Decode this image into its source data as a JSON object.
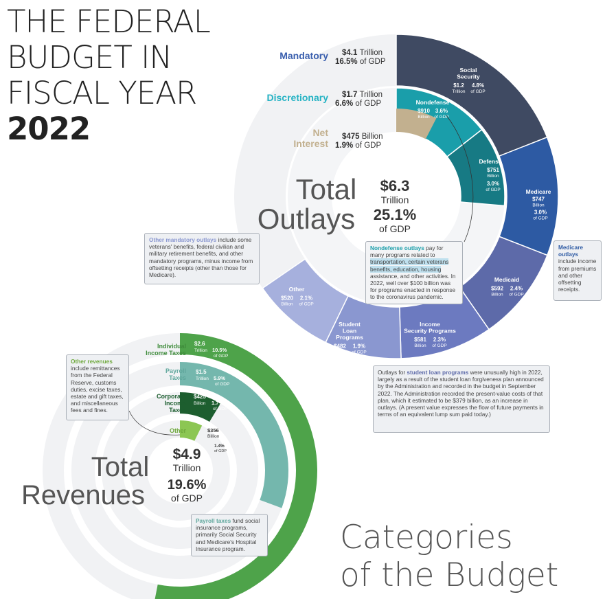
{
  "title": {
    "line1": "THE FEDERAL",
    "line2": "BUDGET IN",
    "line3": "FISCAL YEAR",
    "year": "2022"
  },
  "categories_title": {
    "line1": "Categories",
    "line2": "of the Budget"
  },
  "notes": {
    "other_mandatory": {
      "head": "Other mandatory outlays",
      "text": " include some veterans' benefits, federal civilian and military retirement benefits, and other mandatory programs, minus income from offsetting receipts (other than those for Medicare)."
    },
    "nondefense": {
      "head": "Nondefense outlays",
      "text1": " pay for many programs related to ",
      "highlight": "transportation, certain veterans benefits, education, housing",
      "text2": " assistance, and other activities. In 2022, well over $100 billion was for programs enacted in response to the coronavirus pandemic."
    },
    "medicare": {
      "head": "Medicare outlays",
      "text": " include income from premiums and other offsetting receipts."
    },
    "student_loan": {
      "prefix": "Outlays for ",
      "head": "student loan programs",
      "text": " were unusually high in 2022, largely as a result of the student loan forgiveness plan announced by the Administration and recorded in the budget in September 2022. The Administration recorded the present-value costs of that plan, which it estimated to be $379 billion, as an increase in outlays. (A present value expresses the flow of future payments in terms of an equivalent lump sum paid today.)"
    },
    "other_revenues": {
      "head": "Other revenues",
      "text": " include remittances from the Federal Reserve, customs duties, excise taxes, estate and gift taxes, and miscellaneous fees and fines."
    },
    "payroll": {
      "head": "Payroll taxes",
      "text": " fund social insurance programs, primarily Social Security and Medicare's Hospital Insurance program."
    }
  },
  "chart_data": [
    {
      "type": "pie",
      "title": "Total Outlays",
      "center": {
        "l1": "Total",
        "l2": "Outlays",
        "amount": "$6.3",
        "unit": "Trillion",
        "pct": "25.1%",
        "pctlbl": "of GDP"
      },
      "groups": [
        {
          "name": "Mandatory",
          "amount": "$4.1",
          "unit": "Trillion",
          "pct": "16.5%",
          "pctlbl": "of GDP",
          "value": 4.1,
          "color": "#3a5fae"
        },
        {
          "name": "Discretionary",
          "amount": "$1.7",
          "unit": "Trillion",
          "pct": "6.6%",
          "pctlbl": "of GDP",
          "value": 1.7,
          "color": "#26b3c4"
        },
        {
          "name": "Net",
          "name2": "Interest",
          "amount": "$475",
          "unit": "Billion",
          "pct": "1.9%",
          "pctlbl": "of GDP",
          "value": 0.475,
          "color": "#c2b08f"
        }
      ],
      "outer": [
        {
          "name": [
            "Social",
            "Security"
          ],
          "amount": "$1.2",
          "unit": "Trillion",
          "pct": "4.8%",
          "pctlbl": "of GDP",
          "value": 1.2,
          "color": "#3f4a62"
        },
        {
          "name": [
            "Medicare"
          ],
          "amount": "$747",
          "unit": "Billion",
          "pct": "3.0%",
          "pctlbl": "of GDP",
          "value": 0.747,
          "color": "#2d5aa3"
        },
        {
          "name": [
            "Medicaid"
          ],
          "amount": "$592",
          "unit": "Billion",
          "pct": "2.4%",
          "pctlbl": "of GDP",
          "value": 0.592,
          "color": "#5d6aa9"
        },
        {
          "name": [
            "Income",
            "Security Programs"
          ],
          "amount": "$581",
          "unit": "Billion",
          "pct": "2.3%",
          "pctlbl": "of GDP",
          "value": 0.581,
          "color": "#6c7ac0"
        },
        {
          "name": [
            "Student",
            "Loan",
            "Programs"
          ],
          "amount": "$482",
          "unit": "Billion",
          "pct": "1.9%",
          "pctlbl": "of GDP",
          "value": 0.482,
          "color": "#8a97d0"
        },
        {
          "name": [
            "Other"
          ],
          "amount": "$520",
          "unit": "Billion",
          "pct": "2.1%",
          "pctlbl": "of GDP",
          "value": 0.52,
          "color": "#a6b0dd"
        }
      ],
      "middle": [
        {
          "name": [
            "Nondefense"
          ],
          "amount": "$910",
          "unit": "Billion",
          "pct": "3.6%",
          "pctlbl": "of GDP",
          "value": 0.91,
          "color": "#1a9eaa"
        },
        {
          "name": [
            "Defense"
          ],
          "amount": "$751",
          "unit": "Billion",
          "pct": "3.0%",
          "pctlbl": "of GDP",
          "value": 0.751,
          "color": "#177a84"
        }
      ],
      "inner": [
        {
          "name": [
            "Net Interest"
          ],
          "amount": "$475",
          "unit": "Billion",
          "pct": "1.9%",
          "value": 0.475,
          "color": "#c2b08f"
        }
      ]
    },
    {
      "type": "pie",
      "title": "Total Revenues",
      "center": {
        "l1": "Total",
        "l2": "Revenues",
        "amount": "$4.9",
        "unit": "Trillion",
        "pct": "19.6%",
        "pctlbl": "of GDP"
      },
      "rings": [
        {
          "name": [
            "Individual",
            "Income Taxes"
          ],
          "amount": "$2.6",
          "unit": "Trillion",
          "pct": "10.5%",
          "pctlbl": "of GDP",
          "value": 2.6,
          "color": "#4ea34a",
          "labelColor": "#3f8c3b"
        },
        {
          "name": [
            "Payroll",
            "Taxes"
          ],
          "amount": "$1.5",
          "unit": "Trillion",
          "pct": "5.9%",
          "pctlbl": "of GDP",
          "value": 1.5,
          "color": "#74b7ad",
          "labelColor": "#5fa79c"
        },
        {
          "name": [
            "Corporate",
            "Income",
            "Taxes"
          ],
          "amount": "$425",
          "unit": "Billion",
          "pct": "1.7%",
          "pctlbl": "of GDP",
          "value": 0.425,
          "color": "#1d5e2f",
          "labelColor": "#1d5e2f"
        },
        {
          "name": [
            "Other"
          ],
          "amount": "$356",
          "unit": "Billion",
          "pct": "1.4%",
          "pctlbl": "of GDP",
          "value": 0.356,
          "color": "#8cc653",
          "labelColor": "#6ea83c"
        }
      ]
    }
  ]
}
